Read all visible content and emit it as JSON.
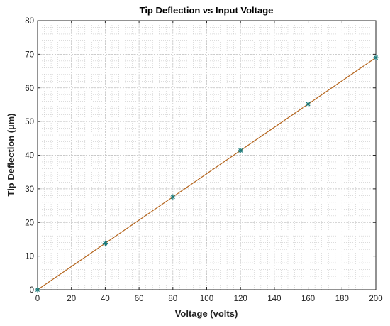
{
  "chart_data": {
    "type": "line",
    "title": "Tip Deflection vs Input Voltage",
    "xlabel": "Voltage (volts)",
    "ylabel": "Tip Deflection (µm)",
    "xlim": [
      0,
      200
    ],
    "ylim": [
      0,
      80
    ],
    "xticks": [
      0,
      20,
      40,
      60,
      80,
      100,
      120,
      140,
      160,
      180,
      200
    ],
    "yticks": [
      0,
      10,
      20,
      30,
      40,
      50,
      60,
      70,
      80
    ],
    "grid": true,
    "minor_grid": true,
    "legend": "none",
    "series": [
      {
        "kind": "fit-line",
        "color": "#b5651d",
        "x": [
          0,
          200
        ],
        "y": [
          0,
          69
        ]
      },
      {
        "kind": "markers",
        "marker": "asterisk",
        "color": "#1b7a7a",
        "x": [
          0,
          40,
          80,
          120,
          160,
          200
        ],
        "y": [
          0,
          13.8,
          27.6,
          41.4,
          55.2,
          69.0
        ]
      }
    ]
  }
}
